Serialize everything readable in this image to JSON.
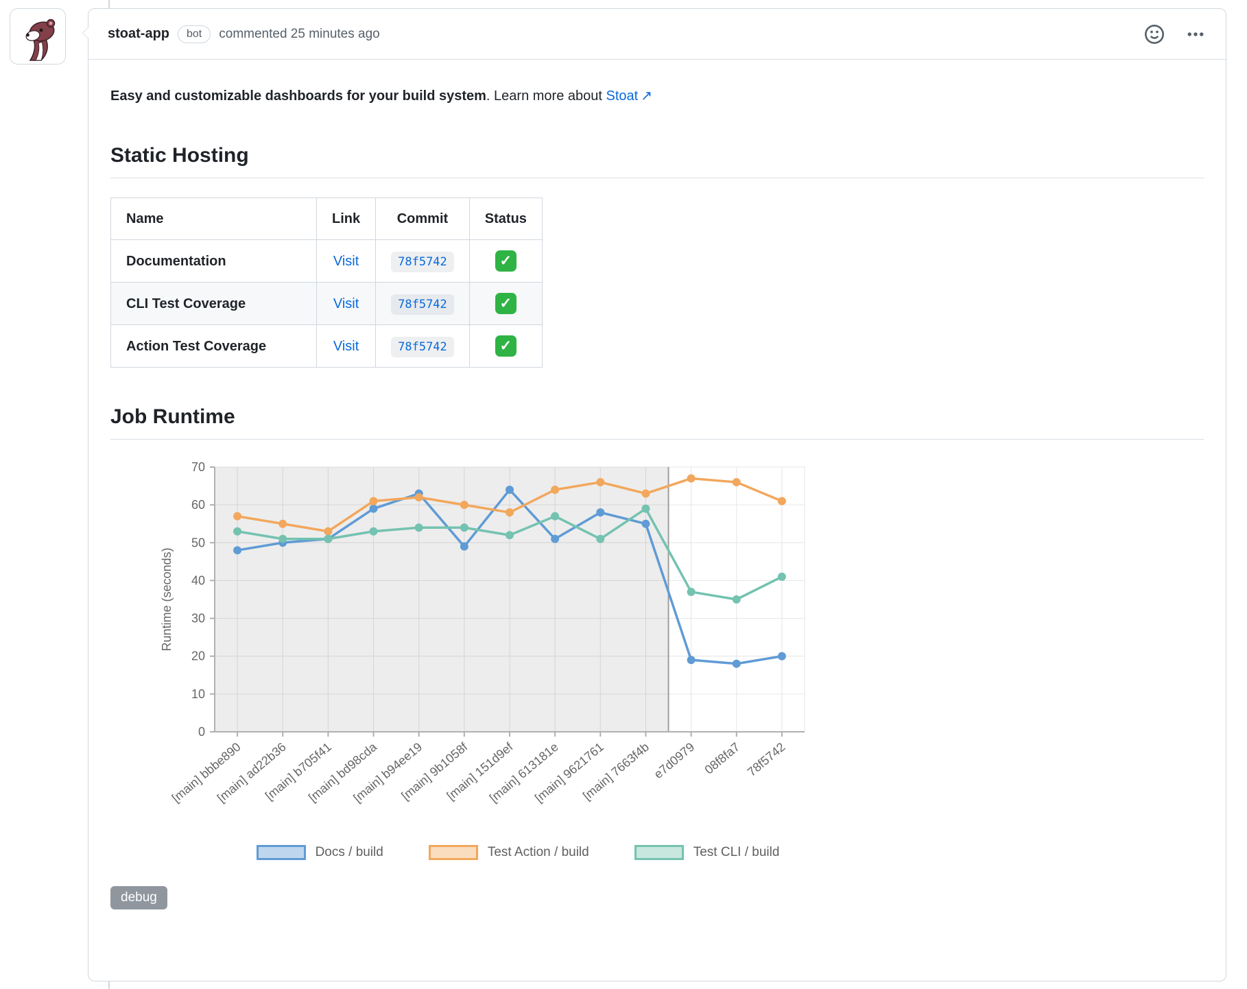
{
  "header": {
    "author": "stoat-app",
    "badge": "bot",
    "action": "commented 25 minutes ago"
  },
  "body": {
    "intro_bold": "Easy and customizable dashboards for your build system",
    "intro_mid": ". Learn more about ",
    "link_text": "Stoat",
    "link_arrow": "↗"
  },
  "sections": {
    "static_hosting": {
      "title": "Static Hosting",
      "table": {
        "headers": [
          "Name",
          "Link",
          "Commit",
          "Status"
        ],
        "rows": [
          {
            "name": "Documentation",
            "link": "Visit",
            "commit": "78f5742",
            "status": "✓"
          },
          {
            "name": "CLI Test Coverage",
            "link": "Visit",
            "commit": "78f5742",
            "status": "✓"
          },
          {
            "name": "Action Test Coverage",
            "link": "Visit",
            "commit": "78f5742",
            "status": "✓"
          }
        ]
      }
    },
    "job_runtime": {
      "title": "Job Runtime"
    }
  },
  "chart_data": {
    "type": "line",
    "x": [
      "[main] bbbe890",
      "[main] ad22b36",
      "[main] b705f41",
      "[main] bd98cda",
      "[main] b94ee19",
      "[main] 9b1058f",
      "[main] 151d9ef",
      "[main] 613181e",
      "[main] 9621761",
      "[main] 7663f4b",
      "e7d0979",
      "08f8fa7",
      "78f5742"
    ],
    "series": [
      {
        "name": "Docs / build",
        "color": "#5f9bd5",
        "values": [
          48,
          50,
          51,
          59,
          63,
          49,
          64,
          51,
          58,
          55,
          19,
          18,
          20
        ]
      },
      {
        "name": "Test Action / build",
        "color": "#f2a75c",
        "values": [
          57,
          55,
          53,
          61,
          62,
          60,
          58,
          64,
          66,
          63,
          67,
          66,
          61
        ]
      },
      {
        "name": "Test CLI / build",
        "color": "#74c2b0",
        "values": [
          53,
          51,
          51,
          53,
          54,
          54,
          52,
          57,
          51,
          59,
          37,
          35,
          41
        ]
      }
    ],
    "ylabel": "Runtime (seconds)",
    "ylim": [
      0,
      70
    ],
    "yticks": [
      0,
      10,
      20,
      30,
      40,
      50,
      60,
      70
    ],
    "shaded_region": {
      "from_index": 0,
      "to_index": 9
    },
    "legend_position": "bottom",
    "grid": true
  },
  "footer": {
    "debug_label": "debug"
  },
  "colors": {
    "link": "#0969da",
    "status_green": "#2fb344",
    "muted": "#57606a",
    "border": "#d0d7de",
    "shaded_fill": "rgba(0,0,0,0.07)"
  }
}
